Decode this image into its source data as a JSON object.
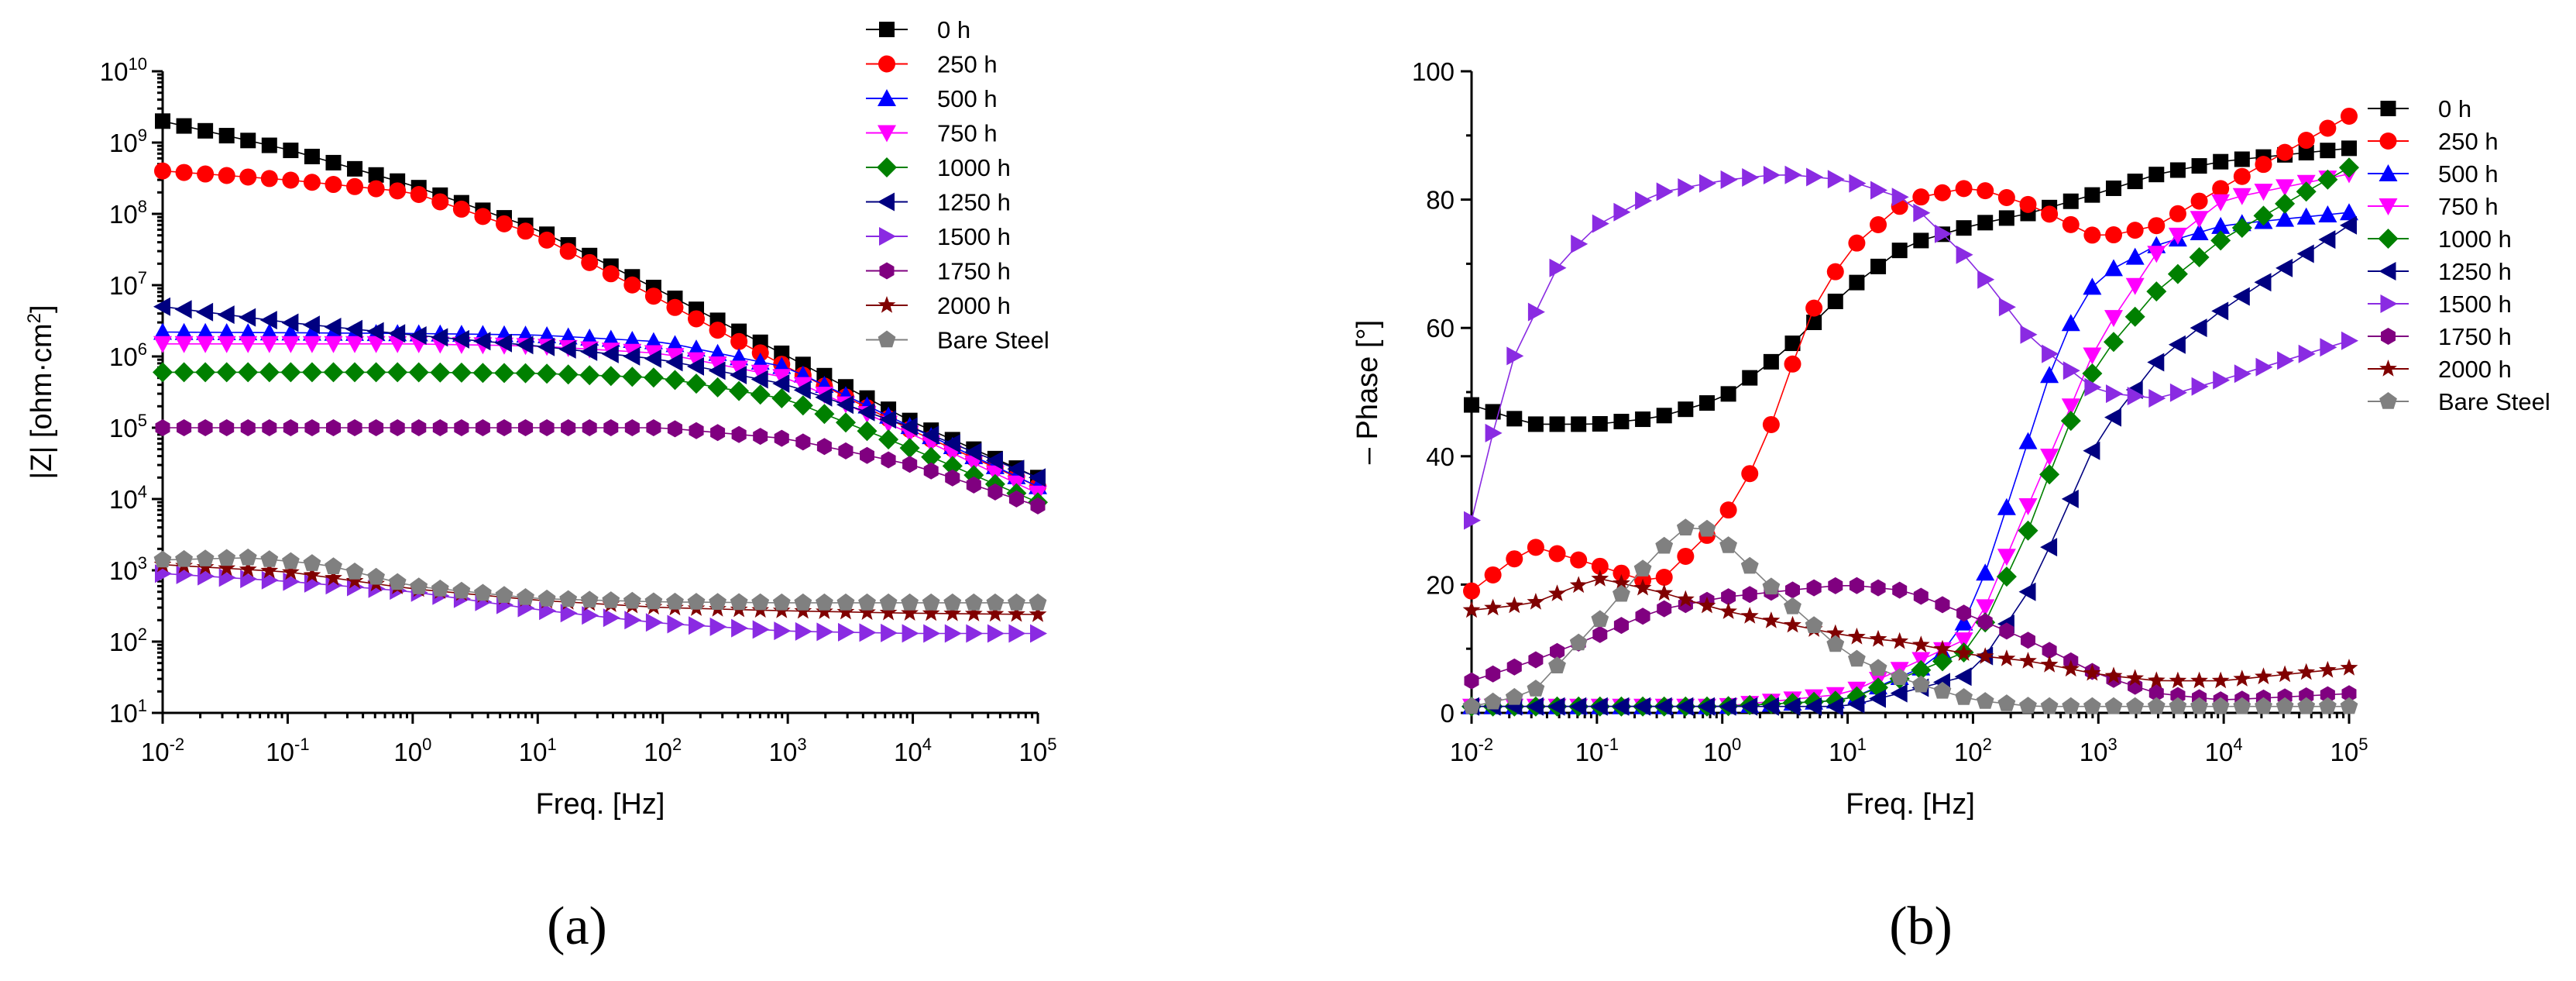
{
  "figure": {
    "panel_a_label": "(a)",
    "panel_b_label": "(b)"
  },
  "chart_data": [
    {
      "type": "scatter",
      "id": "a",
      "x_scale": "log",
      "y_scale": "log",
      "xlim": [
        0.01,
        100000
      ],
      "ylim": [
        10,
        10000000000
      ],
      "xlabel": "Freq. [Hz]",
      "ylabel": "|Z| [ohm·cm²]",
      "ylabel_base": "|Z| [ohm·cm",
      "ylabel_sup": "2",
      "ylabel_end": "]",
      "x_ticks": [
        {
          "value": 0.01,
          "base": "10",
          "exp": "-2"
        },
        {
          "value": 0.1,
          "base": "10",
          "exp": "-1"
        },
        {
          "value": 1,
          "base": "10",
          "exp": "0"
        },
        {
          "value": 10,
          "base": "10",
          "exp": "1"
        },
        {
          "value": 100,
          "base": "10",
          "exp": "2"
        },
        {
          "value": 1000,
          "base": "10",
          "exp": "3"
        },
        {
          "value": 10000,
          "base": "10",
          "exp": "4"
        },
        {
          "value": 100000,
          "base": "10",
          "exp": "5"
        }
      ],
      "y_ticks": [
        {
          "value": 10,
          "base": "10",
          "exp": "1"
        },
        {
          "value": 100,
          "base": "10",
          "exp": "2"
        },
        {
          "value": 1000,
          "base": "10",
          "exp": "3"
        },
        {
          "value": 10000,
          "base": "10",
          "exp": "4"
        },
        {
          "value": 100000,
          "base": "10",
          "exp": "5"
        },
        {
          "value": 1000000,
          "base": "10",
          "exp": "6"
        },
        {
          "value": 10000000,
          "base": "10",
          "exp": "7"
        },
        {
          "value": 100000000,
          "base": "10",
          "exp": "8"
        },
        {
          "value": 1000000000,
          "base": "10",
          "exp": "9"
        },
        {
          "value": 10000000000,
          "base": "10",
          "exp": "10"
        }
      ],
      "legend_position": "top-right",
      "series": [
        {
          "name": "0 h",
          "color": "#000000",
          "marker": "square",
          "points": [
            [
              0.01,
              2000000000
            ],
            [
              0.1,
              800000000
            ],
            [
              1,
              250000000
            ],
            [
              10,
              60000000
            ],
            [
              100,
              8000000
            ],
            [
              1000,
              1000000
            ],
            [
              10000,
              120000
            ],
            [
              100000,
              20000
            ]
          ]
        },
        {
          "name": "250 h",
          "color": "#ff0000",
          "marker": "circle",
          "points": [
            [
              0.01,
              400000000
            ],
            [
              0.1,
              300000000
            ],
            [
              1,
              200000000
            ],
            [
              10,
              50000000
            ],
            [
              100,
              6000000
            ],
            [
              1000,
              700000
            ],
            [
              10000,
              90000
            ],
            [
              100000,
              15000
            ]
          ]
        },
        {
          "name": "500 h",
          "color": "#0000ff",
          "marker": "triangle-up",
          "points": [
            [
              0.01,
              2200000
            ],
            [
              1,
              2100000
            ],
            [
              10,
              2000000
            ],
            [
              100,
              1600000
            ],
            [
              1000,
              700000
            ],
            [
              10000,
              100000
            ],
            [
              100000,
              15000
            ]
          ]
        },
        {
          "name": "750 h",
          "color": "#ff00ff",
          "marker": "triangle-down",
          "points": [
            [
              0.01,
              1500000
            ],
            [
              1,
              1500000
            ],
            [
              10,
              1400000
            ],
            [
              100,
              1100000
            ],
            [
              1000,
              500000
            ],
            [
              10000,
              80000
            ],
            [
              100000,
              12000
            ]
          ]
        },
        {
          "name": "1000 h",
          "color": "#008000",
          "marker": "diamond",
          "points": [
            [
              0.01,
              600000
            ],
            [
              1,
              600000
            ],
            [
              10,
              580000
            ],
            [
              100,
              500000
            ],
            [
              1000,
              250000
            ],
            [
              10000,
              50000
            ],
            [
              100000,
              9000
            ]
          ]
        },
        {
          "name": "1250 h",
          "color": "#000080",
          "marker": "triangle-left",
          "points": [
            [
              0.01,
              5000000
            ],
            [
              0.1,
              3000000
            ],
            [
              1,
              2000000
            ],
            [
              10,
              1400000
            ],
            [
              100,
              900000
            ],
            [
              1000,
              400000
            ],
            [
              10000,
              100000
            ],
            [
              100000,
              20000
            ]
          ]
        },
        {
          "name": "1500 h",
          "color": "#8a2be2",
          "marker": "triangle-right",
          "points": [
            [
              0.01,
              900
            ],
            [
              0.1,
              700
            ],
            [
              1,
              500
            ],
            [
              10,
              280
            ],
            [
              100,
              180
            ],
            [
              1000,
              140
            ],
            [
              10000,
              130
            ],
            [
              100000,
              130
            ]
          ]
        },
        {
          "name": "1750 h",
          "color": "#800080",
          "marker": "hexagon",
          "points": [
            [
              0.01,
              100000
            ],
            [
              1,
              100000
            ],
            [
              100,
              100000
            ],
            [
              1000,
              70000
            ],
            [
              10000,
              30000
            ],
            [
              100000,
              8000
            ]
          ]
        },
        {
          "name": "2000 h",
          "color": "#800000",
          "marker": "star",
          "points": [
            [
              0.01,
              1200
            ],
            [
              0.1,
              950
            ],
            [
              1,
              550
            ],
            [
              10,
              380
            ],
            [
              100,
              300
            ],
            [
              1000,
              270
            ],
            [
              10000,
              250
            ],
            [
              100000,
              240
            ]
          ]
        },
        {
          "name": "Bare Steel",
          "color": "#808080",
          "marker": "pentagon",
          "points": [
            [
              0.01,
              1400
            ],
            [
              0.05,
              1500
            ],
            [
              0.2,
              1200
            ],
            [
              1,
              600
            ],
            [
              10,
              400
            ],
            [
              100,
              360
            ],
            [
              1000,
              350
            ],
            [
              100000,
              350
            ]
          ]
        }
      ]
    },
    {
      "type": "scatter",
      "id": "b",
      "x_scale": "log",
      "y_scale": "linear",
      "xlim": [
        0.01,
        100000
      ],
      "ylim": [
        0,
        100
      ],
      "xlabel": "Freq. [Hz]",
      "ylabel": "– Phase [°]",
      "x_ticks": [
        {
          "value": 0.01,
          "base": "10",
          "exp": "-2"
        },
        {
          "value": 0.1,
          "base": "10",
          "exp": "-1"
        },
        {
          "value": 1,
          "base": "10",
          "exp": "0"
        },
        {
          "value": 10,
          "base": "10",
          "exp": "1"
        },
        {
          "value": 100,
          "base": "10",
          "exp": "2"
        },
        {
          "value": 1000,
          "base": "10",
          "exp": "3"
        },
        {
          "value": 10000,
          "base": "10",
          "exp": "4"
        },
        {
          "value": 100000,
          "base": "10",
          "exp": "5"
        }
      ],
      "y_ticks": [
        {
          "value": 0,
          "label": "0"
        },
        {
          "value": 20,
          "label": "20"
        },
        {
          "value": 40,
          "label": "40"
        },
        {
          "value": 60,
          "label": "60"
        },
        {
          "value": 80,
          "label": "80"
        },
        {
          "value": 100,
          "label": "100"
        }
      ],
      "legend_position": "top-right",
      "series": [
        {
          "name": "0 h",
          "color": "#000000",
          "marker": "square",
          "points": [
            [
              0.01,
              48
            ],
            [
              0.03,
              45
            ],
            [
              0.1,
              45
            ],
            [
              0.3,
              46
            ],
            [
              1,
              49
            ],
            [
              3,
              56
            ],
            [
              10,
              66
            ],
            [
              30,
              73
            ],
            [
              100,
              76
            ],
            [
              300,
              78
            ],
            [
              1000,
              81
            ],
            [
              3000,
              84
            ],
            [
              10000,
              86
            ],
            [
              100000,
              88
            ]
          ]
        },
        {
          "name": "250 h",
          "color": "#ff0000",
          "marker": "circle",
          "points": [
            [
              0.01,
              19
            ],
            [
              0.03,
              26
            ],
            [
              0.1,
              23
            ],
            [
              0.3,
              20
            ],
            [
              1,
              30
            ],
            [
              2,
              40
            ],
            [
              5,
              62
            ],
            [
              10,
              72
            ],
            [
              30,
              80
            ],
            [
              100,
              82
            ],
            [
              300,
              79
            ],
            [
              1000,
              74
            ],
            [
              3000,
              76
            ],
            [
              10000,
              82
            ],
            [
              100000,
              93
            ]
          ]
        },
        {
          "name": "500 h",
          "color": "#0000ff",
          "marker": "triangle-up",
          "points": [
            [
              0.01,
              1
            ],
            [
              1,
              1
            ],
            [
              10,
              2
            ],
            [
              50,
              8
            ],
            [
              100,
              16
            ],
            [
              200,
              34
            ],
            [
              500,
              58
            ],
            [
              1000,
              68
            ],
            [
              3000,
              73
            ],
            [
              10000,
              76
            ],
            [
              100000,
              78
            ]
          ]
        },
        {
          "name": "750 h",
          "color": "#ff00ff",
          "marker": "triangle-down",
          "points": [
            [
              0.01,
              1
            ],
            [
              1,
              1
            ],
            [
              10,
              3
            ],
            [
              100,
              12
            ],
            [
              300,
              34
            ],
            [
              500,
              44
            ],
            [
              1000,
              58
            ],
            [
              3000,
              72
            ],
            [
              10000,
              80
            ],
            [
              100000,
              84
            ]
          ]
        },
        {
          "name": "1000 h",
          "color": "#008000",
          "marker": "diamond",
          "points": [
            [
              0.01,
              1
            ],
            [
              1,
              1
            ],
            [
              10,
              2
            ],
            [
              100,
              10
            ],
            [
              300,
              30
            ],
            [
              500,
              42
            ],
            [
              1000,
              55
            ],
            [
              3000,
              66
            ],
            [
              10000,
              74
            ],
            [
              100000,
              85
            ]
          ]
        },
        {
          "name": "1250 h",
          "color": "#000080",
          "marker": "triangle-left",
          "points": [
            [
              0.01,
              1
            ],
            [
              1,
              1
            ],
            [
              10,
              1
            ],
            [
              100,
              6
            ],
            [
              300,
              20
            ],
            [
              1000,
              43
            ],
            [
              3000,
              55
            ],
            [
              10000,
              63
            ],
            [
              100000,
              76
            ]
          ]
        },
        {
          "name": "1500 h",
          "color": "#8a2be2",
          "marker": "triangle-right",
          "points": [
            [
              0.01,
              30
            ],
            [
              0.02,
              54
            ],
            [
              0.05,
              70
            ],
            [
              0.1,
              76
            ],
            [
              0.3,
              81
            ],
            [
              1,
              83
            ],
            [
              3,
              84
            ],
            [
              10,
              83
            ],
            [
              30,
              80
            ],
            [
              100,
              70
            ],
            [
              300,
              58
            ],
            [
              1000,
              50
            ],
            [
              3000,
              49
            ],
            [
              10000,
              52
            ],
            [
              100000,
              58
            ]
          ]
        },
        {
          "name": "1750 h",
          "color": "#800080",
          "marker": "hexagon",
          "points": [
            [
              0.01,
              5
            ],
            [
              0.03,
              8
            ],
            [
              0.1,
              12
            ],
            [
              0.3,
              16
            ],
            [
              1,
              18
            ],
            [
              3,
              19
            ],
            [
              10,
              20
            ],
            [
              30,
              19
            ],
            [
              100,
              15
            ],
            [
              300,
              11
            ],
            [
              1000,
              6
            ],
            [
              3000,
              3
            ],
            [
              10000,
              2
            ],
            [
              100000,
              3
            ]
          ]
        },
        {
          "name": "2000 h",
          "color": "#800000",
          "marker": "star",
          "points": [
            [
              0.01,
              16
            ],
            [
              0.03,
              17
            ],
            [
              0.1,
              21
            ],
            [
              0.3,
              19
            ],
            [
              1,
              16
            ],
            [
              3,
              14
            ],
            [
              10,
              12
            ],
            [
              30,
              11
            ],
            [
              100,
              9
            ],
            [
              300,
              8
            ],
            [
              1000,
              6
            ],
            [
              3000,
              5
            ],
            [
              10000,
              5
            ],
            [
              100000,
              7
            ]
          ]
        },
        {
          "name": "Bare Steel",
          "color": "#808080",
          "marker": "pentagon",
          "points": [
            [
              0.01,
              1
            ],
            [
              0.03,
              3
            ],
            [
              0.1,
              14
            ],
            [
              0.3,
              25
            ],
            [
              0.6,
              30
            ],
            [
              1,
              27
            ],
            [
              3,
              18
            ],
            [
              10,
              9
            ],
            [
              30,
              5
            ],
            [
              100,
              2
            ],
            [
              300,
              1
            ],
            [
              1000,
              1
            ],
            [
              100000,
              1
            ]
          ]
        }
      ]
    }
  ]
}
